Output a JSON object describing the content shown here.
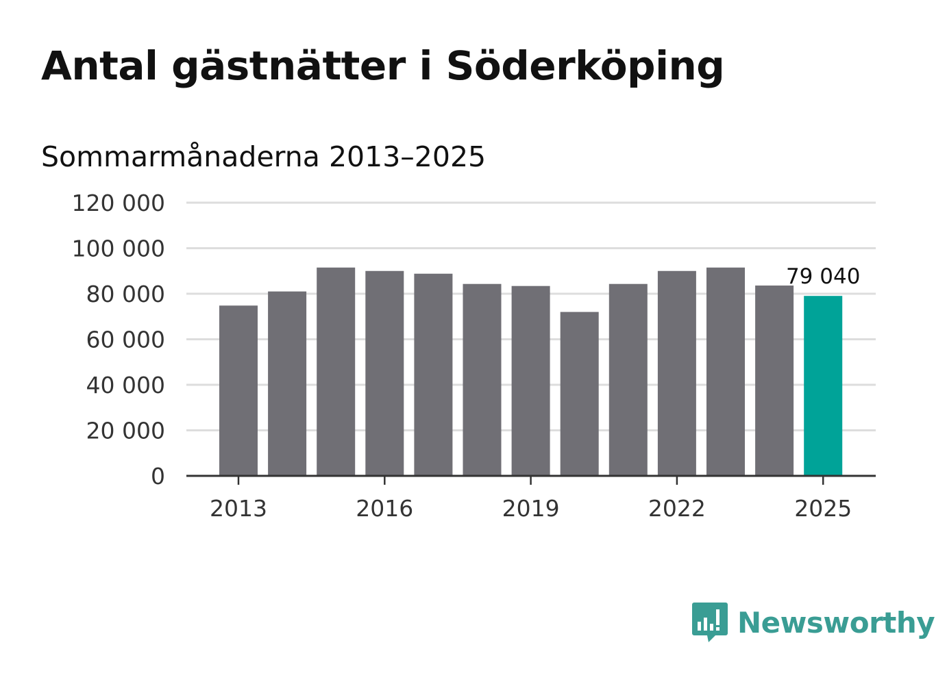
{
  "header": {
    "title": "Antal gästnätter i Söderköping",
    "subtitle": "Sommarmånaderna 2013–2025"
  },
  "brand": {
    "name": "Newsworthy",
    "color": "#3a9d94",
    "icon": "newsworthy-bar-chart-icon"
  },
  "colors": {
    "bar": "#706f75",
    "highlight": "#00a398",
    "grid": "#dddddd",
    "axis": "#333333"
  },
  "chart_data": {
    "type": "bar",
    "title": "Antal gästnätter i Söderköping",
    "subtitle": "Sommarmånaderna 2013–2025",
    "xlabel": "",
    "ylabel": "",
    "categories": [
      2013,
      2014,
      2015,
      2016,
      2017,
      2018,
      2019,
      2020,
      2021,
      2022,
      2023,
      2024,
      2025
    ],
    "values": [
      74800,
      81000,
      91500,
      90000,
      88800,
      84300,
      83400,
      72000,
      84300,
      90000,
      91500,
      83600,
      79040
    ],
    "ylim": [
      0,
      120000
    ],
    "yticks": [
      0,
      20000,
      40000,
      60000,
      80000,
      100000,
      120000
    ],
    "ytick_labels": [
      "0",
      "20 000",
      "40 000",
      "60 000",
      "80 000",
      "100 000",
      "120 000"
    ],
    "xticks": [
      2013,
      2016,
      2019,
      2022,
      2025
    ],
    "xtick_labels": [
      "2013",
      "2016",
      "2019",
      "2022",
      "2025"
    ],
    "highlight_category": 2025,
    "annotations": [
      {
        "category": 2025,
        "text": "79 040"
      }
    ],
    "grid": true,
    "legend": "none"
  }
}
